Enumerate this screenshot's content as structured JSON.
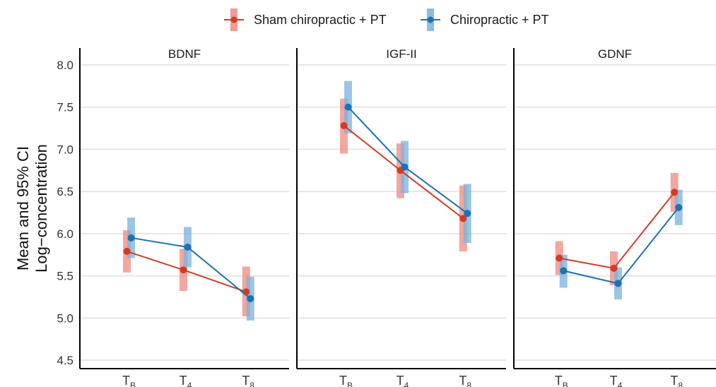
{
  "chart_data": {
    "type": "line",
    "ylabel": [
      "Mean and 95% CI",
      "Log−concentration"
    ],
    "ylim": [
      4.4,
      8.2
    ],
    "yticks": [
      "4.5",
      "5.0",
      "5.5",
      "6.0",
      "6.5",
      "7.0",
      "7.5",
      "8.0"
    ],
    "grid": "horizontal",
    "legend_position": "top",
    "categories": [
      {
        "main": "T",
        "sub": "B"
      },
      {
        "main": "T",
        "sub": "4"
      },
      {
        "main": "T",
        "sub": "8"
      }
    ],
    "series": [
      {
        "name": "Sham chiropractic + PT",
        "color": "#d63a26",
        "ci_color": "#ee8a80"
      },
      {
        "name": "Chiropractic + PT",
        "color": "#1b72b5",
        "ci_color": "#79b2dc"
      }
    ],
    "panels": [
      {
        "title": "BDNF",
        "data": [
          {
            "mean": [
              5.79,
              5.57,
              5.31
            ],
            "lower": [
              5.54,
              5.32,
              5.02
            ],
            "upper": [
              6.04,
              5.82,
              5.61
            ]
          },
          {
            "mean": [
              5.95,
              5.84,
              5.23
            ],
            "lower": [
              5.71,
              5.6,
              4.97
            ],
            "upper": [
              6.19,
              6.08,
              5.49
            ]
          }
        ]
      },
      {
        "title": "IGF-II",
        "data": [
          {
            "mean": [
              7.28,
              6.75,
              6.18
            ],
            "lower": [
              6.95,
              6.42,
              5.79
            ],
            "upper": [
              7.6,
              7.07,
              6.57
            ]
          },
          {
            "mean": [
              7.5,
              6.79,
              6.24
            ],
            "lower": [
              7.19,
              6.48,
              5.89
            ],
            "upper": [
              7.81,
              7.1,
              6.59
            ]
          }
        ]
      },
      {
        "title": "GDNF",
        "data": [
          {
            "mean": [
              5.71,
              5.59,
              6.49
            ],
            "lower": [
              5.51,
              5.39,
              6.26
            ],
            "upper": [
              5.91,
              5.79,
              6.72
            ]
          },
          {
            "mean": [
              5.56,
              5.41,
              6.31
            ],
            "lower": [
              5.36,
              5.22,
              6.1
            ],
            "upper": [
              5.75,
              5.6,
              6.52
            ]
          }
        ]
      }
    ]
  }
}
